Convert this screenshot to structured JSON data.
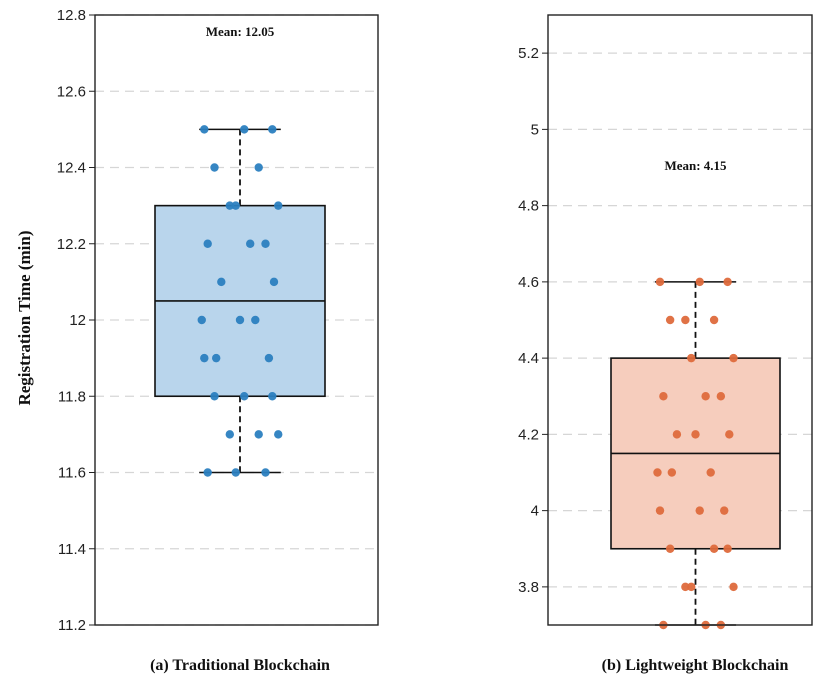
{
  "figure": {
    "ylabel": "Registration Time (min)"
  },
  "chart_data": [
    {
      "type": "box",
      "caption": "(a) Traditional Blockchain",
      "annotation": "Mean: 12.05",
      "ylim": [
        11.2,
        12.8
      ],
      "yticks": [
        11.2,
        11.4,
        11.6,
        11.8,
        12,
        12.2,
        12.4,
        12.6,
        12.8
      ],
      "ytick_labels": [
        "11.2",
        "11.4",
        "11.6",
        "11.8",
        "12",
        "12.2",
        "12.4",
        "12.6",
        "12.8"
      ],
      "grid": "horizontal-dashed",
      "box": {
        "min": 11.6,
        "q1": 11.8,
        "median": 12.05,
        "q3": 12.3,
        "max": 12.5
      },
      "box_fill": "#b9d5ec",
      "point_color": "#2b7fc0",
      "points": [
        12.5,
        12.5,
        12.5,
        12.4,
        12.4,
        12.3,
        12.3,
        12.3,
        12.2,
        12.2,
        12.2,
        12.1,
        12.1,
        12.0,
        12.0,
        12.0,
        11.9,
        11.9,
        11.9,
        11.8,
        11.8,
        11.8,
        11.7,
        11.7,
        11.7,
        11.6,
        11.6,
        11.6
      ]
    },
    {
      "type": "box",
      "caption": "(b) Lightweight Blockchain",
      "annotation": "Mean: 4.15",
      "ylim": [
        3.7,
        5.3
      ],
      "yticks": [
        3.8,
        4.0,
        4.2,
        4.4,
        4.6,
        4.8,
        5.0,
        5.2
      ],
      "ytick_labels": [
        "3.8",
        "4",
        "4.2",
        "4.4",
        "4.6",
        "4.8",
        "5",
        "5.2"
      ],
      "grid": "horizontal-dashed",
      "box": {
        "min": 3.7,
        "q1": 3.9,
        "median": 4.15,
        "q3": 4.4,
        "max": 4.6
      },
      "box_fill": "#f6cdbd",
      "point_color": "#de6a3c",
      "points": [
        4.6,
        4.6,
        4.6,
        4.5,
        4.5,
        4.5,
        4.4,
        4.4,
        4.3,
        4.3,
        4.3,
        4.2,
        4.2,
        4.2,
        4.1,
        4.1,
        4.1,
        4.0,
        4.0,
        4.0,
        3.9,
        3.9,
        3.9,
        3.8,
        3.8,
        3.8,
        3.7,
        3.7,
        3.7
      ]
    }
  ]
}
